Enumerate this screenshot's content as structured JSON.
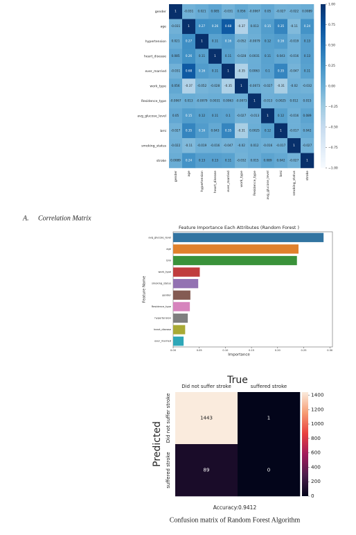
{
  "chart_data": [
    {
      "type": "heatmap",
      "categories": [
        "gender",
        "age",
        "hypertension",
        "heart_disease",
        "ever_married",
        "work_type",
        "Residence_type",
        "avg_glucose_level",
        "bmi",
        "smoking_status",
        "stroke"
      ],
      "z": [
        [
          1,
          -0.031,
          0.021,
          0.085,
          -0.031,
          0.056,
          -0.0067,
          0.05,
          -0.027,
          -0.022,
          0.0089
        ],
        [
          -0.031,
          1,
          0.27,
          0.26,
          0.68,
          -0.37,
          0.013,
          0.15,
          0.35,
          -0.11,
          0.24
        ],
        [
          0.021,
          0.27,
          1,
          0.11,
          0.16,
          -0.052,
          -0.0079,
          0.12,
          0.16,
          -0.019,
          0.13
        ],
        [
          0.085,
          0.26,
          0.11,
          1,
          0.11,
          -0.028,
          0.0031,
          0.11,
          0.043,
          -0.016,
          0.13
        ],
        [
          -0.031,
          0.68,
          0.16,
          0.11,
          1,
          -0.35,
          0.0063,
          0.1,
          0.35,
          -0.047,
          0.11
        ],
        [
          0.056,
          -0.37,
          -0.052,
          -0.028,
          -0.35,
          1,
          -0.0073,
          -0.027,
          -0.31,
          -0.02,
          -0.032
        ],
        [
          -0.0067,
          0.013,
          -0.0079,
          0.0031,
          0.0063,
          -0.0073,
          1,
          -0.013,
          0.0025,
          0.012,
          0.015
        ],
        [
          0.05,
          0.15,
          0.12,
          0.11,
          0.1,
          -0.027,
          -0.013,
          1,
          0.12,
          -0.016,
          0.089
        ],
        [
          -0.027,
          0.35,
          0.16,
          0.043,
          0.35,
          -0.31,
          0.0025,
          0.12,
          1,
          -0.017,
          0.042
        ],
        [
          -0.022,
          -0.11,
          -0.019,
          -0.016,
          -0.047,
          -0.02,
          0.012,
          -0.016,
          -0.017,
          1,
          -0.027
        ],
        [
          0.0089,
          0.24,
          0.13,
          0.13,
          0.11,
          -0.032,
          0.015,
          0.089,
          0.042,
          -0.027,
          1
        ]
      ],
      "zlim": [
        -1,
        1
      ],
      "colormap": [
        "#f7fbff",
        "#deebf7",
        "#c6dbef",
        "#9ecae1",
        "#6baed6",
        "#4292c6",
        "#2171b5",
        "#08519c",
        "#08306b"
      ],
      "colorbar_ticks": [
        {
          "value": 1,
          "label": "1.00"
        },
        {
          "value": 0.75,
          "label": "0.75"
        },
        {
          "value": 0.5,
          "label": "0.50"
        },
        {
          "value": 0.25,
          "label": "0.25"
        },
        {
          "value": 0,
          "label": "0.00"
        },
        {
          "value": -0.25,
          "label": "−0.25"
        },
        {
          "value": -0.5,
          "label": "−0.50"
        },
        {
          "value": -0.75,
          "label": "−0.75"
        },
        {
          "value": -1,
          "label": "−1.00"
        }
      ],
      "caption_label": "A.",
      "caption": "Correlation Matrix"
    },
    {
      "type": "bar",
      "orientation": "horizontal",
      "title": "Feature Importance Each Attributes (Random Forest )",
      "xlabel": "Importance",
      "ylabel": "Feature Name",
      "categories": [
        "avg_glucose_level",
        "age",
        "bmi",
        "work_type",
        "smoking_status",
        "gender",
        "Residence_type",
        "hypertension",
        "heart_disease",
        "ever_married"
      ],
      "values": [
        0.288,
        0.24,
        0.237,
        0.051,
        0.048,
        0.033,
        0.032,
        0.028,
        0.023,
        0.02
      ],
      "colors": [
        "#3274a1",
        "#e1812c",
        "#3a923a",
        "#c03d3e",
        "#9372b2",
        "#845b53",
        "#d684bd",
        "#7f7f7f",
        "#a9aa35",
        "#2ea7b8"
      ],
      "xlim": [
        0,
        0.305
      ],
      "xticks": [
        {
          "value": 0,
          "label": "0.00"
        },
        {
          "value": 0.05,
          "label": "0.05"
        },
        {
          "value": 0.1,
          "label": "0.10"
        },
        {
          "value": 0.15,
          "label": "0.15"
        },
        {
          "value": 0.2,
          "label": "0.20"
        },
        {
          "value": 0.25,
          "label": "0.25"
        },
        {
          "value": 0.3,
          "label": "0.30"
        }
      ]
    },
    {
      "type": "heatmap",
      "title": "True",
      "ylabel": "Predicted",
      "categories": [
        "Did not suffer stroke",
        "suffered stroke"
      ],
      "z": [
        [
          1443,
          1
        ],
        [
          89,
          0
        ]
      ],
      "zlim": [
        0,
        1443
      ],
      "colormap": [
        "#03051a",
        "#4c1d4b",
        "#a11a5b",
        "#e83f3f",
        "#f69c73",
        "#faebdd"
      ],
      "colorbar_ticks": [
        0,
        200,
        400,
        600,
        800,
        1000,
        1200,
        1400
      ],
      "note": "Accuracy:0.9412",
      "caption": "Confusion matrix of Random Forest Algorithm"
    }
  ]
}
